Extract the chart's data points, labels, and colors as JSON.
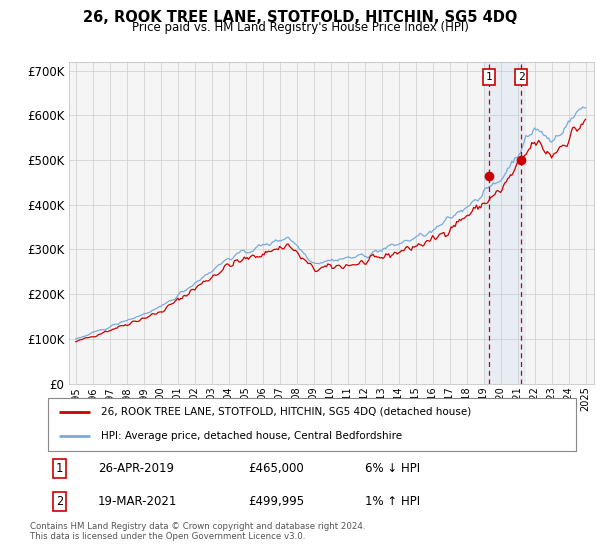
{
  "title": "26, ROOK TREE LANE, STOTFOLD, HITCHIN, SG5 4DQ",
  "subtitle": "Price paid vs. HM Land Registry's House Price Index (HPI)",
  "ylim": [
    0,
    720000
  ],
  "yticks": [
    0,
    100000,
    200000,
    300000,
    400000,
    500000,
    600000,
    700000
  ],
  "ytick_labels": [
    "£0",
    "£100K",
    "£200K",
    "£300K",
    "£400K",
    "£500K",
    "£600K",
    "£700K"
  ],
  "background_color": "#ffffff",
  "plot_bg_color": "#f5f5f5",
  "grid_color": "#cccccc",
  "hpi_color": "#7aaadd",
  "price_color": "#cc0000",
  "marker1_x_year": 2019.32,
  "marker1_y": 465000,
  "marker2_x_year": 2021.22,
  "marker2_y": 499995,
  "shade_x1": 2019.0,
  "shade_x2": 2021.5,
  "legend_line1": "26, ROOK TREE LANE, STOTFOLD, HITCHIN, SG5 4DQ (detached house)",
  "legend_line2": "HPI: Average price, detached house, Central Bedfordshire",
  "table_row1_num": "1",
  "table_row1_date": "26-APR-2019",
  "table_row1_price": "£465,000",
  "table_row1_hpi": "6% ↓ HPI",
  "table_row2_num": "2",
  "table_row2_date": "19-MAR-2021",
  "table_row2_price": "£499,995",
  "table_row2_hpi": "1% ↑ HPI",
  "footer": "Contains HM Land Registry data © Crown copyright and database right 2024.\nThis data is licensed under the Open Government Licence v3.0.",
  "xtick_years": [
    1995,
    1996,
    1997,
    1998,
    1999,
    2000,
    2001,
    2002,
    2003,
    2004,
    2005,
    2006,
    2007,
    2008,
    2009,
    2010,
    2011,
    2012,
    2013,
    2014,
    2015,
    2016,
    2017,
    2018,
    2019,
    2020,
    2021,
    2022,
    2023,
    2024,
    2025
  ]
}
